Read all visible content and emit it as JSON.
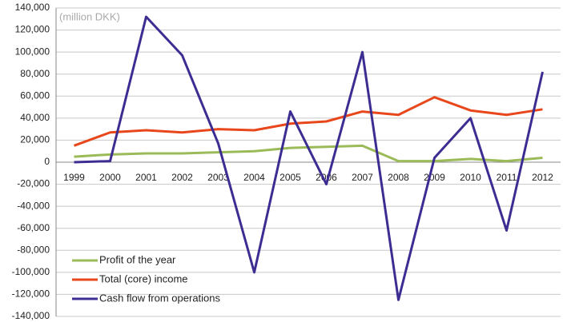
{
  "chart_data": {
    "type": "line",
    "annotation": "(million DKK)",
    "categories": [
      "1999",
      "2000",
      "2001",
      "2002",
      "2003",
      "2004",
      "2005",
      "2006",
      "2007",
      "2008",
      "2009",
      "2010",
      "2011",
      "2012"
    ],
    "series": [
      {
        "name": "Profit of the year",
        "color": "#9bbb59",
        "values": [
          5000,
          7000,
          8000,
          8000,
          9000,
          10000,
          13000,
          14000,
          15000,
          1000,
          1000,
          3000,
          1000,
          4000
        ]
      },
      {
        "name": "Total (core) income",
        "color": "#e8471c",
        "values": [
          15000,
          27000,
          29000,
          27000,
          30000,
          29000,
          35000,
          37000,
          46000,
          43000,
          59000,
          47000,
          43000,
          48000
        ]
      },
      {
        "name": "Cash flow from operations",
        "color": "#3b2d91",
        "values": [
          0,
          1000,
          132000,
          97000,
          17000,
          -100000,
          46000,
          -20000,
          100000,
          -125000,
          4000,
          40000,
          -62000,
          82000
        ]
      }
    ],
    "ylim": [
      -140000,
      140000
    ],
    "yticks": [
      {
        "value": -140000,
        "label": "-140,000"
      },
      {
        "value": -120000,
        "label": "-120,000"
      },
      {
        "value": -100000,
        "label": "-100,000"
      },
      {
        "value": -80000,
        "label": "-80,000"
      },
      {
        "value": -60000,
        "label": "-60,000"
      },
      {
        "value": -40000,
        "label": "-40,000"
      },
      {
        "value": -20000,
        "label": "-20,000"
      },
      0,
      {
        "value": 20000,
        "label": "20,000"
      },
      {
        "value": 40000,
        "label": "40,000"
      },
      {
        "value": 60000,
        "label": "60,000"
      },
      {
        "value": 80000,
        "label": "80,000"
      },
      {
        "value": 100000,
        "label": "100,000"
      },
      {
        "value": 120000,
        "label": "120,000"
      },
      {
        "value": 140000,
        "label": "140,000"
      }
    ],
    "grid": true,
    "legend": "lower left"
  }
}
